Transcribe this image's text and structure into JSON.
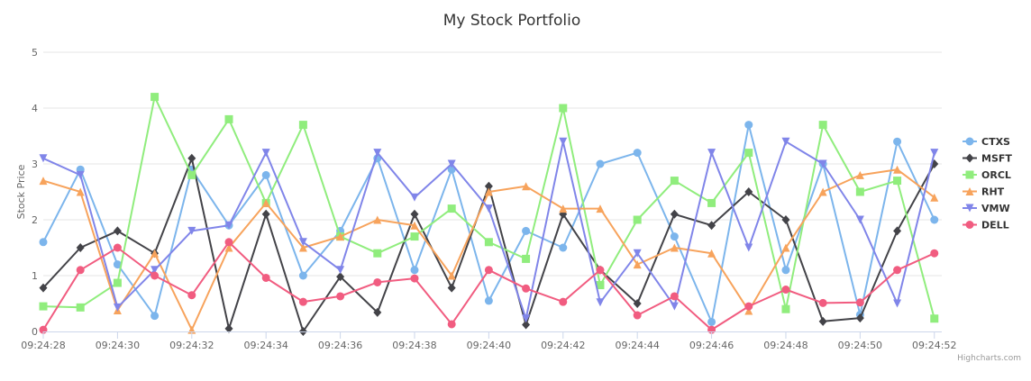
{
  "chart_data": {
    "type": "line",
    "title": "My Stock Portfolio",
    "ylabel": "Stock Price",
    "xlabel": "",
    "ylim": [
      0,
      5
    ],
    "yticks": [
      0,
      1,
      2,
      3,
      4,
      5
    ],
    "xlim_seconds": [
      28,
      52.2
    ],
    "x": [
      "09:24:28",
      "09:24:29",
      "09:24:30",
      "09:24:31",
      "09:24:32",
      "09:24:33",
      "09:24:34",
      "09:24:35",
      "09:24:36",
      "09:24:37",
      "09:24:38",
      "09:24:39",
      "09:24:40",
      "09:24:41",
      "09:24:42",
      "09:24:43",
      "09:24:44",
      "09:24:45",
      "09:24:46",
      "09:24:47",
      "09:24:48",
      "09:24:49",
      "09:24:50",
      "09:24:51",
      "09:24:52"
    ],
    "x_tick_labels": [
      "09:24:28",
      "09:24:30",
      "09:24:32",
      "09:24:34",
      "09:24:36",
      "09:24:38",
      "09:24:40",
      "09:24:42",
      "09:24:44",
      "09:24:46",
      "09:24:48",
      "09:24:50",
      "09:24:52"
    ],
    "grid": true,
    "legend_position": "right",
    "series": [
      {
        "name": "CTXS",
        "color": "#7cb5ec",
        "marker": "circle",
        "values": [
          1.6,
          2.9,
          1.2,
          0.28,
          2.9,
          1.9,
          2.8,
          1.0,
          1.8,
          3.1,
          1.1,
          2.9,
          0.55,
          1.8,
          1.5,
          3.0,
          3.2,
          1.7,
          0.17,
          3.7,
          1.1,
          3.0,
          0.3,
          3.4,
          2.0
        ]
      },
      {
        "name": "MSFT",
        "color": "#434348",
        "marker": "diamond",
        "values": [
          0.78,
          1.5,
          1.8,
          1.4,
          3.1,
          0.05,
          2.1,
          0.0,
          0.98,
          0.34,
          2.1,
          0.78,
          2.6,
          0.12,
          2.1,
          1.1,
          0.5,
          2.1,
          1.9,
          2.5,
          2.0,
          0.18,
          0.24,
          1.8,
          3.0
        ]
      },
      {
        "name": "ORCL",
        "color": "#90ed7d",
        "marker": "square",
        "values": [
          0.45,
          0.43,
          0.87,
          4.2,
          2.8,
          3.8,
          2.3,
          3.7,
          1.7,
          1.4,
          1.7,
          2.2,
          1.6,
          1.3,
          4.0,
          0.83,
          2.0,
          2.7,
          2.3,
          3.2,
          0.4,
          3.7,
          2.5,
          2.7,
          0.23
        ]
      },
      {
        "name": "RHT",
        "color": "#f7a35c",
        "marker": "triangle",
        "values": [
          2.7,
          2.5,
          0.38,
          1.4,
          0.03,
          1.5,
          2.3,
          1.5,
          1.7,
          2.0,
          1.9,
          1.0,
          2.5,
          2.6,
          2.2,
          2.2,
          1.2,
          1.5,
          1.4,
          0.37,
          1.5,
          2.5,
          2.8,
          2.9,
          2.4
        ]
      },
      {
        "name": "VMW",
        "color": "#8085e9",
        "marker": "triangle-down",
        "values": [
          3.1,
          2.8,
          0.43,
          1.1,
          1.8,
          1.9,
          3.2,
          1.6,
          1.1,
          3.2,
          2.4,
          3.0,
          2.2,
          0.23,
          3.4,
          0.52,
          1.4,
          0.45,
          3.2,
          1.5,
          3.4,
          3.0,
          2.0,
          0.5,
          3.2
        ]
      },
      {
        "name": "DELL",
        "color": "#f15c80",
        "marker": "circle",
        "values": [
          0.03,
          1.1,
          1.5,
          1.0,
          0.65,
          1.6,
          0.96,
          0.53,
          0.63,
          0.88,
          0.95,
          0.13,
          1.1,
          0.77,
          0.53,
          1.1,
          0.29,
          0.63,
          0.03,
          0.45,
          0.75,
          0.51,
          0.52,
          1.1,
          1.4
        ]
      }
    ]
  },
  "credits": "Highcharts.com"
}
